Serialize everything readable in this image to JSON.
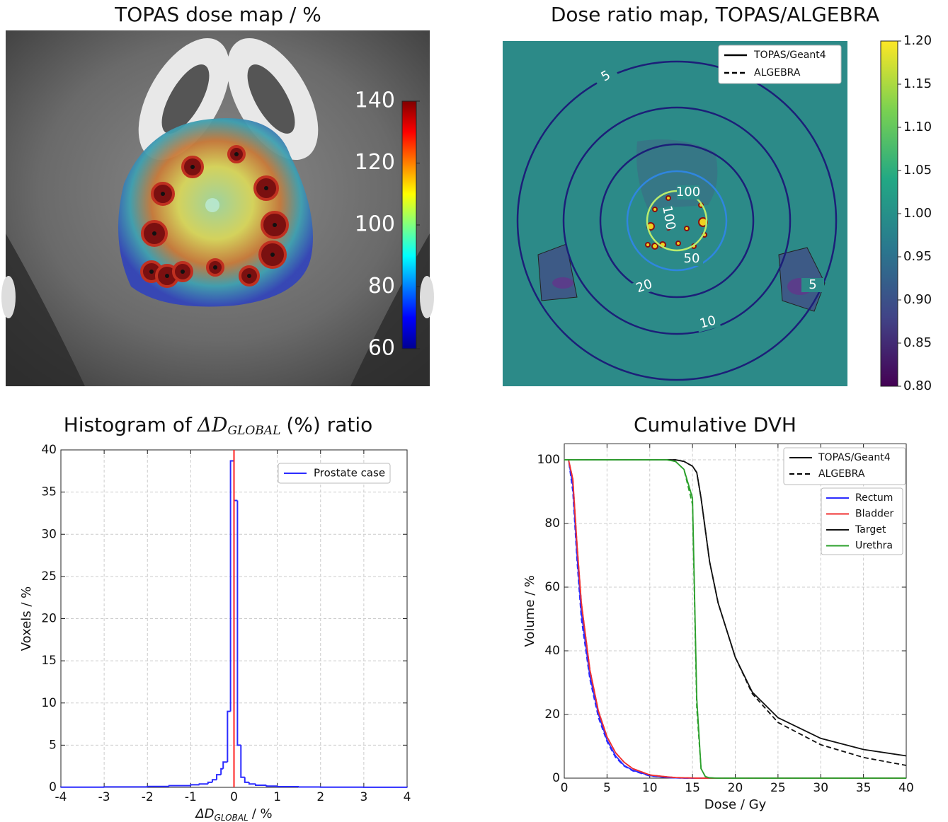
{
  "chart_data": [
    {
      "type": "heatmap",
      "title": "TOPAS dose map / %",
      "colorbar": {
        "colormap": "jet",
        "lim": [
          60,
          140
        ],
        "ticks": [
          60,
          80,
          100,
          120,
          140
        ]
      }
    },
    {
      "type": "heatmap",
      "title": "Dose ratio map, TOPAS/ALGEBRA",
      "colorbar": {
        "colormap": "viridis",
        "lim": [
          0.8,
          1.2
        ],
        "ticks": [
          {
            "value": 0.8,
            "label": "0.80"
          },
          {
            "value": 0.85,
            "label": "0.85"
          },
          {
            "value": 0.9,
            "label": "0.90"
          },
          {
            "value": 0.95,
            "label": "0.95"
          },
          {
            "value": 1.0,
            "label": "1.00"
          },
          {
            "value": 1.05,
            "label": "1.05"
          },
          {
            "value": 1.1,
            "label": "1.10"
          },
          {
            "value": 1.15,
            "label": "1.15"
          },
          {
            "value": 1.2,
            "label": "1.20"
          }
        ]
      },
      "contour_levels": [
        5,
        10,
        20,
        50,
        100
      ],
      "contour_colors": [
        "#1c1f78",
        "#1c1f78",
        "#1c1f78",
        "#2f86e0",
        "#b9ec6e"
      ],
      "legend": [
        {
          "name": "TOPAS/Geant4",
          "dash": "solid"
        },
        {
          "name": "ALGEBRA",
          "dash": "dashed"
        }
      ]
    },
    {
      "type": "histogram",
      "title": {
        "text": "Histogram of",
        "symbol": "ΔD",
        "subscript": "GLOBAL",
        "rest": "(%) ratio"
      },
      "xlabel": {
        "symbol": "ΔD",
        "subscript": "GLOBAL",
        "rest": "/ %"
      },
      "ylabel": "Voxels / %",
      "name": "Prostate case",
      "color": "#2b2bff",
      "bins": [
        -4,
        -3,
        -2,
        -1.5,
        -1,
        -0.8,
        -0.6,
        -0.5,
        -0.4,
        -0.3,
        -0.25,
        -0.15,
        -0.08,
        0,
        0.08,
        0.16,
        0.25,
        0.35,
        0.5,
        0.75,
        1,
        1.5,
        2,
        3,
        4
      ],
      "values": [
        0.02,
        0.05,
        0.1,
        0.2,
        0.3,
        0.4,
        0.6,
        0.9,
        1.5,
        2.2,
        3,
        9,
        38.7,
        34,
        5,
        1.2,
        0.6,
        0.4,
        0.25,
        0.15,
        0.08,
        0.04,
        0.02,
        0.01
      ],
      "vline": {
        "value": 0,
        "color": "#ff2020"
      },
      "xlim": [
        -4,
        4
      ],
      "ylim": [
        0,
        40
      ],
      "xticks": [
        -4,
        -3,
        -2,
        -1,
        0,
        1,
        2,
        3,
        4
      ],
      "yticks": [
        0,
        5,
        10,
        15,
        20,
        25,
        30,
        35,
        40
      ],
      "grid": true
    },
    {
      "type": "line",
      "title": "Cumulative DVH",
      "xlabel": "Dose / Gy",
      "ylabel": "Volume / %",
      "x": [
        0,
        0.5,
        1,
        1.5,
        2,
        3,
        4,
        5,
        6,
        7,
        8,
        10,
        12,
        13,
        14,
        15,
        15.5,
        16,
        16.5,
        17,
        18,
        20,
        22,
        25,
        30,
        35,
        40
      ],
      "linestyles": [
        {
          "name": "TOPAS/Geant4",
          "dash": "solid"
        },
        {
          "name": "ALGEBRA",
          "dash": "dashed"
        }
      ],
      "series": [
        {
          "name": "Rectum",
          "color": "#2b2bff",
          "values": [
            100,
            100,
            92,
            70,
            52,
            32,
            20,
            12,
            7,
            4,
            2.5,
            0.8,
            0.2,
            0.1,
            0,
            0,
            0,
            0,
            0,
            0,
            0,
            0,
            0,
            0,
            0,
            0,
            0
          ],
          "dashed_values": [
            100,
            100,
            90,
            68,
            50,
            31,
            19,
            11.5,
            6.5,
            3.8,
            2.3,
            0.7,
            0.2,
            0.1,
            0,
            0,
            0,
            0,
            0,
            0,
            0,
            0,
            0,
            0,
            0,
            0,
            0
          ]
        },
        {
          "name": "Bladder",
          "color": "#f03030",
          "values": [
            100,
            100,
            94,
            73,
            55,
            34,
            21,
            13,
            8,
            5,
            3,
            1,
            0.4,
            0.2,
            0.1,
            0.05,
            0,
            0,
            0,
            0,
            0,
            0,
            0,
            0,
            0,
            0,
            0
          ],
          "dashed_values": [
            100,
            100,
            94,
            73,
            55,
            34,
            21,
            13,
            8,
            5,
            3,
            1,
            0.4,
            0.2,
            0.1,
            0.05,
            0,
            0,
            0,
            0,
            0,
            0,
            0,
            0,
            0,
            0,
            0
          ]
        },
        {
          "name": "Target",
          "color": "#111111",
          "values": [
            100,
            100,
            100,
            100,
            100,
            100,
            100,
            100,
            100,
            100,
            100,
            100,
            100,
            100,
            99.5,
            98,
            96,
            88,
            78,
            68,
            55,
            38,
            27,
            19,
            12.5,
            9,
            7
          ],
          "dashed_values": [
            100,
            100,
            100,
            100,
            100,
            100,
            100,
            100,
            100,
            100,
            100,
            100,
            100,
            100,
            99.5,
            98,
            96,
            88,
            78,
            68,
            55,
            38,
            26.5,
            17.5,
            10.5,
            6.5,
            4
          ]
        },
        {
          "name": "Urethra",
          "color": "#2ca02c",
          "values": [
            100,
            100,
            100,
            100,
            100,
            100,
            100,
            100,
            100,
            100,
            100,
            100,
            100,
            99.5,
            97,
            88,
            25,
            3,
            0.5,
            0.1,
            0,
            0,
            0,
            0,
            0,
            0,
            0
          ],
          "dashed_values": [
            100,
            100,
            100,
            100,
            100,
            100,
            100,
            100,
            100,
            100,
            100,
            100,
            100,
            99.5,
            97,
            86,
            22,
            3,
            0.5,
            0.1,
            0,
            0,
            0,
            0,
            0,
            0,
            0
          ]
        }
      ],
      "xlim": [
        0,
        40
      ],
      "ylim": [
        0,
        105
      ],
      "xticks": [
        0,
        5,
        10,
        15,
        20,
        25,
        30,
        35,
        40
      ],
      "yticks": [
        0,
        20,
        40,
        60,
        80,
        100
      ],
      "grid": true
    }
  ]
}
